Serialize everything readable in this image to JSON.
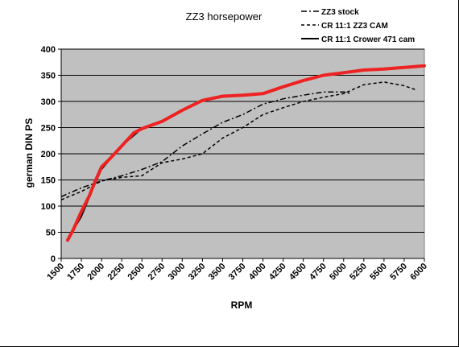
{
  "chart_data": {
    "type": "line",
    "title": "ZZ3 horsepower",
    "xlabel": "RPM",
    "ylabel": "german DIN PS",
    "xlim": [
      1500,
      6000
    ],
    "ylim": [
      0,
      400
    ],
    "yticks": [
      0,
      50,
      100,
      150,
      200,
      250,
      300,
      350,
      400
    ],
    "xtick_labels": [
      "1500",
      "1750",
      "2000",
      "2250",
      "2500",
      "2750",
      "3000",
      "3250",
      "3500",
      "3750",
      "4000",
      "4250",
      "4500",
      "4750",
      "5000",
      "5250",
      "5500",
      "5750",
      "6000"
    ],
    "grid": "horizontal",
    "plot_background": "#c0c0c0",
    "legend_position": "top-right",
    "series": [
      {
        "name": "ZZ3 stock",
        "style": "dash-dot",
        "color": "#000000",
        "x": [
          1500,
          1750,
          2000,
          2250,
          2500,
          2750,
          3000,
          3250,
          3500,
          3750,
          4000,
          4250,
          4500,
          4750,
          5000,
          5100
        ],
        "y": [
          118,
          135,
          148,
          158,
          170,
          185,
          215,
          238,
          260,
          275,
          295,
          305,
          312,
          318,
          318,
          315
        ]
      },
      {
        "name": "CR 11:1 ZZ3 CAM",
        "style": "dashed",
        "color": "#000000",
        "x": [
          1500,
          1750,
          2000,
          2250,
          2500,
          2750,
          3000,
          3250,
          3500,
          3750,
          4000,
          4250,
          4500,
          4750,
          5000,
          5250,
          5500,
          5750,
          5900
        ],
        "y": [
          112,
          128,
          148,
          155,
          158,
          183,
          190,
          200,
          230,
          250,
          275,
          288,
          300,
          308,
          315,
          332,
          337,
          330,
          322
        ]
      },
      {
        "name": "CR 11:1 Crower 471 cam",
        "style": "solid",
        "color": "#000000",
        "x": [
          1580,
          1750,
          1900,
          2000,
          2250,
          2500,
          2750,
          3000,
          3250,
          3500,
          3750,
          4000,
          4250,
          4500,
          4750,
          5000,
          5250,
          5500,
          5750,
          6000
        ],
        "y": [
          35,
          80,
          135,
          170,
          215,
          248,
          262,
          283,
          302,
          310,
          312,
          315,
          328,
          340,
          350,
          355,
          360,
          362,
          365,
          368
        ]
      }
    ],
    "overlay_series": {
      "color": "#ee2222",
      "x": [
        1580,
        1650,
        1750,
        1850,
        1900,
        2000,
        2100,
        2250,
        2400,
        2500,
        2750,
        3000,
        3250,
        3500,
        3750,
        4000,
        4250,
        4500,
        4750,
        5000,
        5250,
        5500,
        5750,
        6000
      ],
      "y": [
        35,
        55,
        90,
        120,
        140,
        175,
        190,
        215,
        240,
        248,
        262,
        283,
        302,
        310,
        312,
        315,
        328,
        340,
        350,
        355,
        360,
        362,
        365,
        368
      ]
    }
  }
}
